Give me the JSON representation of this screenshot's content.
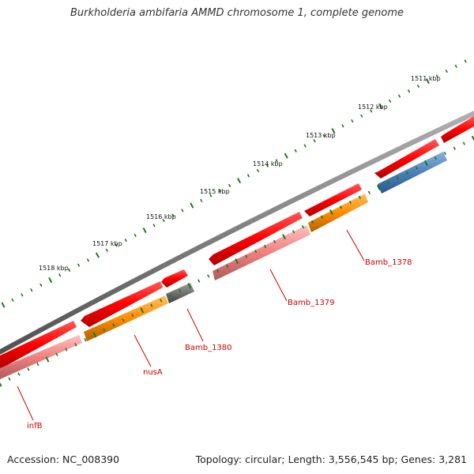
{
  "title": "Burkholderia ambifaria AMMD chromosome 1, complete genome",
  "footer": {
    "accession": "Accession: NC_008390",
    "topology": "Topology: circular; Length: 3,556,545 bp; Genes: 3,281"
  },
  "scale_labels": [
    "1511 kbp",
    "1512 kbp",
    "1513 kbp",
    "1514 kbp",
    "1515 kbp",
    "1516 kbp",
    "1517 kbp",
    "1518 kbp"
  ],
  "gene_labels": [
    "Bamb_1378",
    "Bamb_1379",
    "Bamb_1380",
    "nusA",
    "infB"
  ],
  "colors": {
    "backbone": "#808080",
    "cds_red": "#ff0000",
    "gene_pink": "#f08080",
    "orange": "#ff8c00",
    "blue": "#4a80b8",
    "gray_gene": "#707070",
    "ticks": "#1a7a1a",
    "label_red": "#cc0000"
  }
}
